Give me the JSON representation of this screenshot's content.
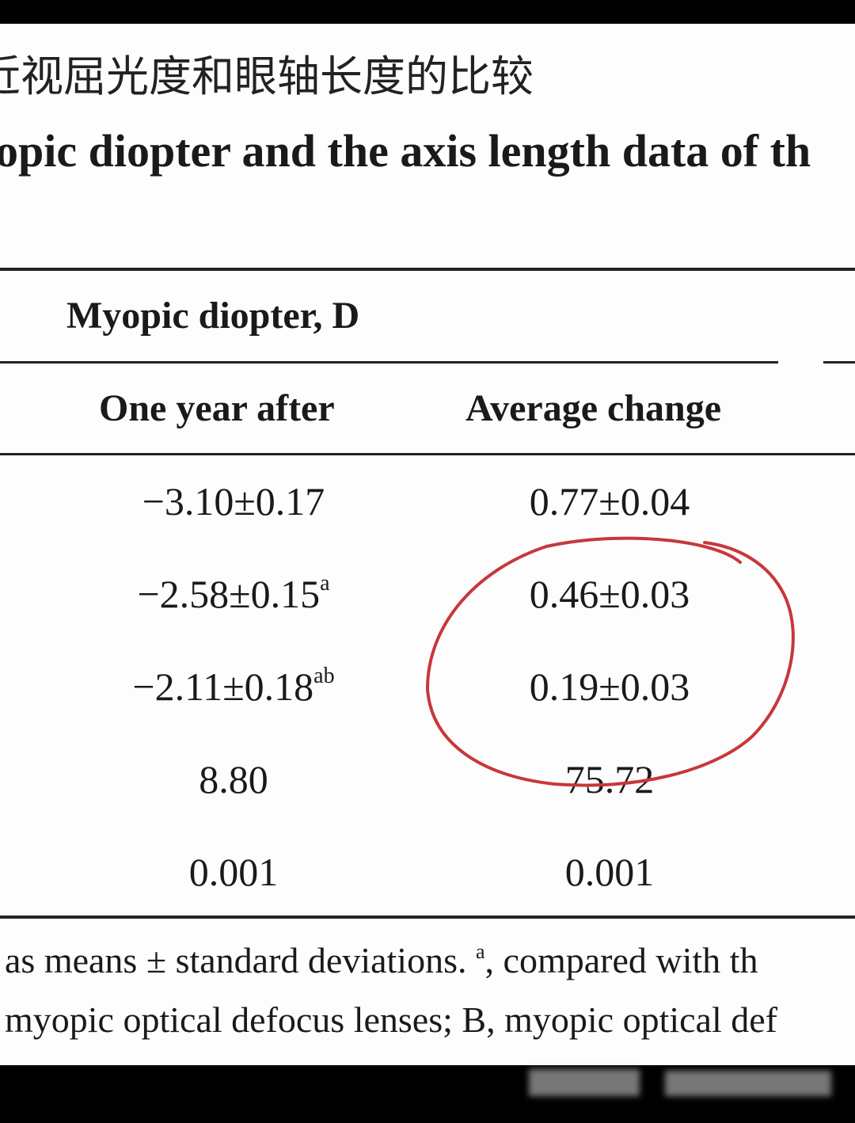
{
  "header": {
    "title_cn": "近视屈光度和眼轴长度的比较",
    "title_en": "opic diopter and the axis length data of th"
  },
  "table": {
    "group_header": "Myopic diopter, D",
    "columns": [
      "One year after",
      "Average change"
    ],
    "rows": [
      [
        {
          "text": "−3.10±0.17"
        },
        {
          "text": "0.77±0.04"
        }
      ],
      [
        {
          "text": "−2.58±0.15",
          "sup": "a"
        },
        {
          "text": "0.46±0.03"
        }
      ],
      [
        {
          "text": "−2.11±0.18",
          "sup": "ab"
        },
        {
          "text": "0.19±0.03"
        }
      ],
      [
        {
          "text": "8.80"
        },
        {
          "text": "75.72"
        }
      ],
      [
        {
          "text": "0.001"
        },
        {
          "text": "0.001"
        }
      ]
    ]
  },
  "footnote": {
    "line1_a": "as means ± standard deviations. ",
    "line1_sup": "a",
    "line1_b": ", compared with th",
    "line2": "myopic optical defocus lenses; B, myopic optical def"
  }
}
